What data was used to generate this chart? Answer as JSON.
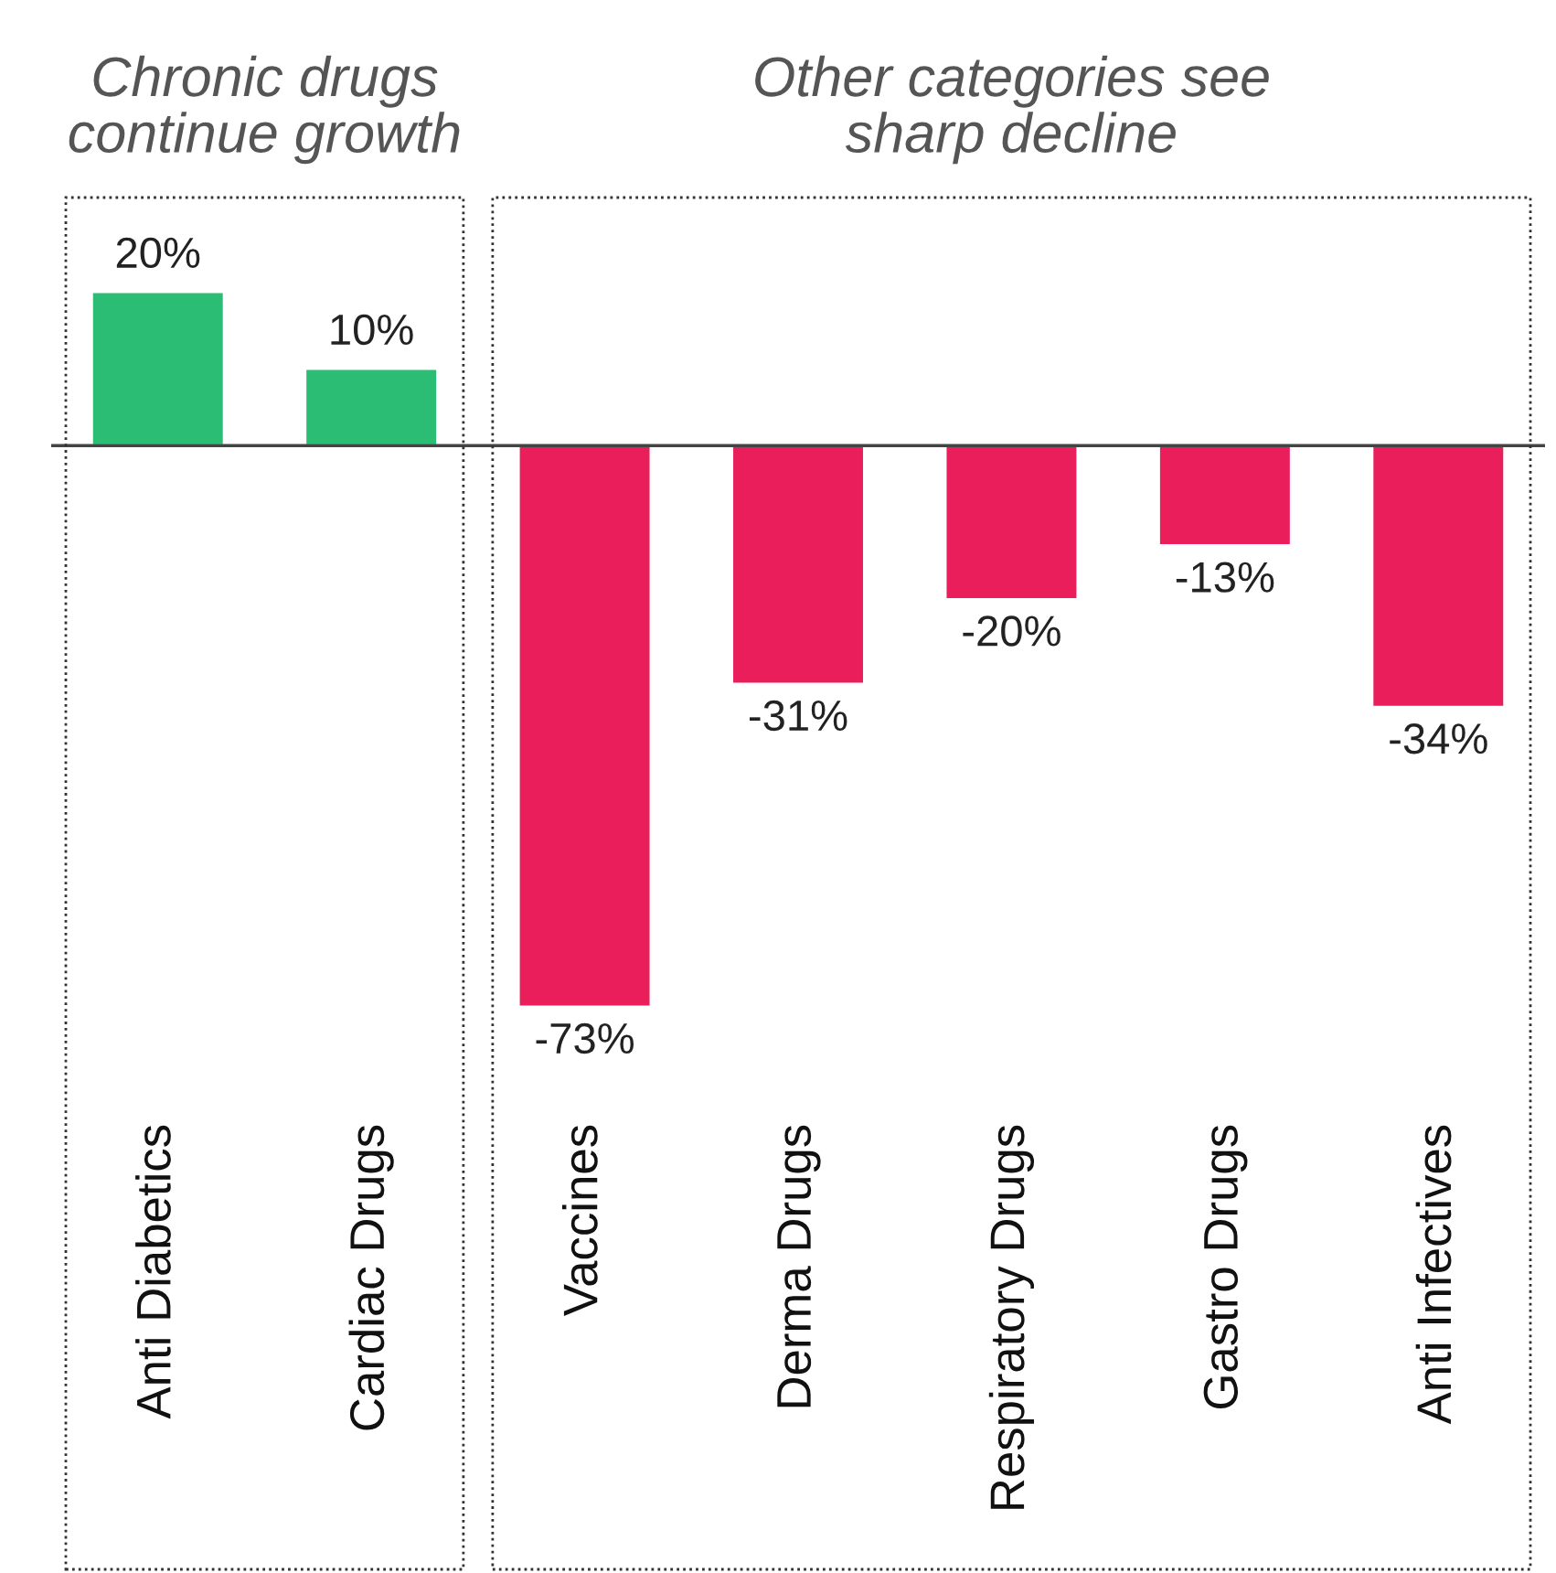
{
  "chart_data": {
    "type": "bar",
    "categories": [
      "Anti Diabetics",
      "Cardiac Drugs",
      "Vaccines",
      "Derma Drugs",
      "Respiratory Drugs",
      "Gastro Drugs",
      "Anti Infectives"
    ],
    "values": [
      20,
      10,
      -73,
      -31,
      -20,
      -13,
      -34
    ],
    "colors": [
      "#2bbd73",
      "#2bbd73",
      "#e91e5a",
      "#e91e5a",
      "#e91e5a",
      "#e91e5a",
      "#e91e5a"
    ],
    "value_labels": [
      "20%",
      "10%",
      "-73%",
      "-31%",
      "-20%",
      "-13%",
      "-34%"
    ],
    "annotations": [
      "Chronic drugs\ncontinue growth",
      "Other categories see\nsharp decline"
    ],
    "grid": false,
    "legend": false
  }
}
